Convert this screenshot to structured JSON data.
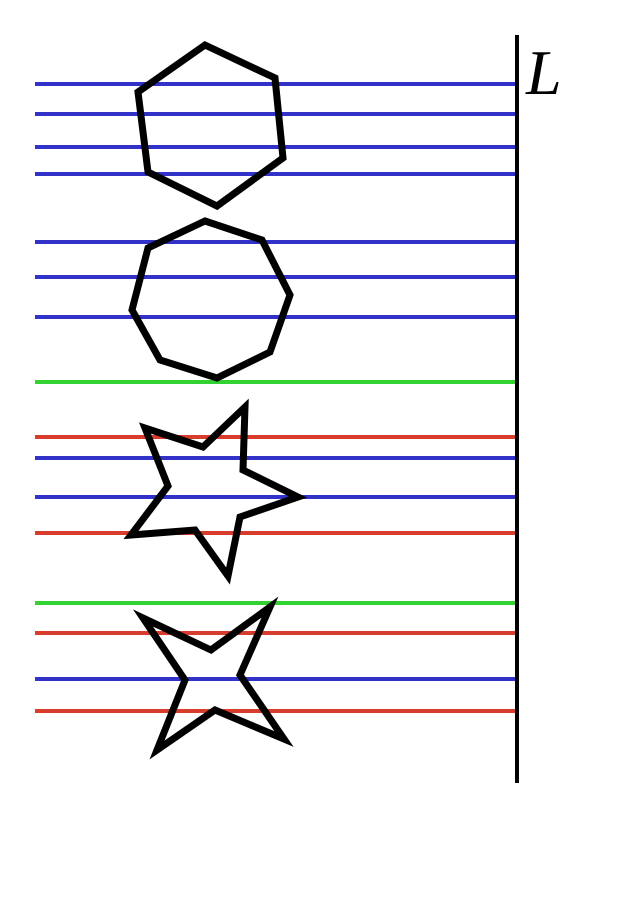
{
  "label": "L"
}
